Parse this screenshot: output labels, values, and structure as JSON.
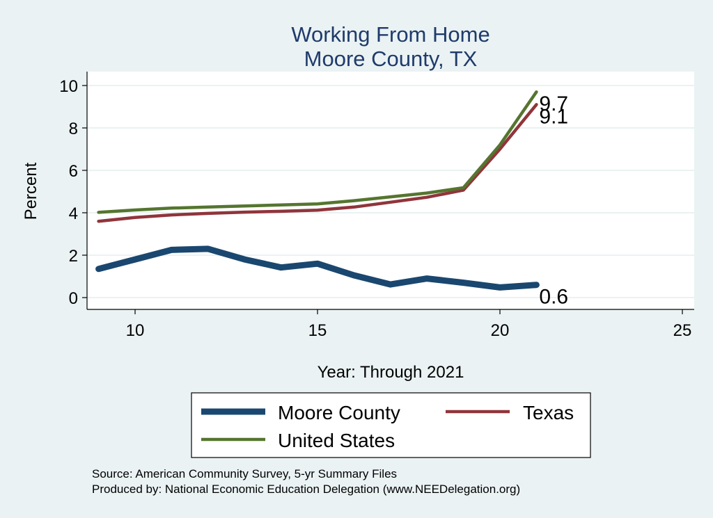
{
  "chart_data": {
    "type": "line",
    "title": "Working From Home",
    "subtitle": "Moore County, TX",
    "xlabel": "Year: Through 2021",
    "ylabel": "Percent",
    "xlim": [
      9,
      25
    ],
    "ylim": [
      0,
      10
    ],
    "x_ticks": [
      10,
      15,
      20,
      25
    ],
    "y_ticks": [
      0,
      2,
      4,
      6,
      8,
      10
    ],
    "grid": true,
    "legend_position": "bottom",
    "x": [
      9,
      10,
      11,
      12,
      13,
      14,
      15,
      16,
      17,
      18,
      19,
      20,
      21
    ],
    "series": [
      {
        "name": "Moore County",
        "color": "#1a476f",
        "values": [
          1.35,
          1.8,
          2.25,
          2.3,
          1.8,
          1.42,
          1.6,
          1.05,
          0.62,
          0.9,
          0.7,
          0.48,
          0.6
        ],
        "end_label": "0.6"
      },
      {
        "name": "Texas",
        "color": "#90353b",
        "values": [
          3.6,
          3.78,
          3.9,
          3.97,
          4.03,
          4.07,
          4.12,
          4.27,
          4.5,
          4.73,
          5.07,
          7.0,
          9.1
        ],
        "end_label": "9.1"
      },
      {
        "name": "United States",
        "color": "#55752f",
        "values": [
          4.02,
          4.13,
          4.22,
          4.27,
          4.32,
          4.37,
          4.42,
          4.57,
          4.75,
          4.93,
          5.18,
          7.2,
          9.7
        ],
        "end_label": "9.7"
      }
    ],
    "notes": [
      "Source: American Community Survey, 5-yr Summary Files",
      "Produced by: National Economic Education Delegation (www.NEEDelegation.org)"
    ]
  }
}
